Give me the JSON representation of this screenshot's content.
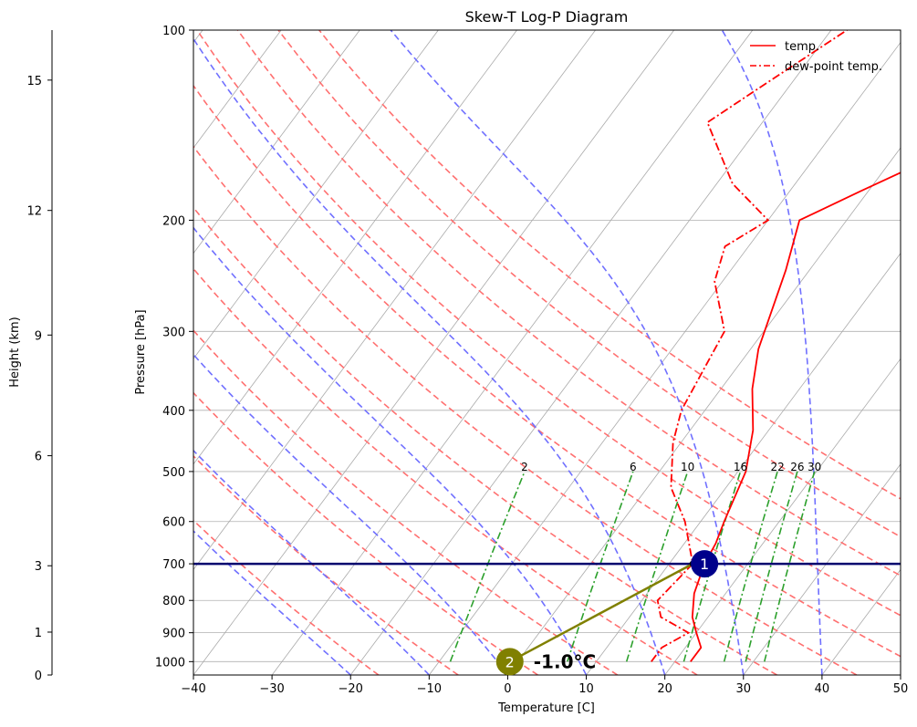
{
  "chart_data": {
    "type": "skew-t",
    "title": "Skew-T Log-P Diagram",
    "xlabel": "Temperature [C]",
    "ylabel": "Pressure [hPa]",
    "height_axis_label": "Height (km)",
    "xlim": [
      -40,
      50
    ],
    "plim": [
      1050,
      100
    ],
    "x_ticks": [
      -40,
      -30,
      -20,
      -10,
      0,
      10,
      20,
      30,
      40,
      50
    ],
    "p_ticks": [
      100,
      200,
      300,
      400,
      500,
      600,
      700,
      800,
      900,
      1000
    ],
    "height_ticks": [
      {
        "label": "15",
        "p": 120
      },
      {
        "label": "12",
        "p": 193
      },
      {
        "label": "9",
        "p": 304
      },
      {
        "label": "6",
        "p": 472
      },
      {
        "label": "3",
        "p": 705
      },
      {
        "label": "1",
        "p": 898
      },
      {
        "label": "0",
        "p": 1050
      }
    ],
    "grid": true,
    "legend_position": "top-right",
    "series": [
      {
        "name": "temp.",
        "style": "solid",
        "color": "#ff0000",
        "points": [
          [
            22,
            1000
          ],
          [
            22,
            950
          ],
          [
            20,
            900
          ],
          [
            18,
            850
          ],
          [
            16,
            780
          ],
          [
            14.5,
            700
          ],
          [
            14,
            650
          ],
          [
            13,
            600
          ],
          [
            11,
            500
          ],
          [
            8,
            430
          ],
          [
            4,
            370
          ],
          [
            1,
            320
          ],
          [
            -3,
            240
          ],
          [
            -6,
            200
          ],
          [
            -1,
            180
          ],
          [
            8,
            150
          ],
          [
            17,
            125
          ],
          [
            32,
            100
          ]
        ]
      },
      {
        "name": "dew-point temp.",
        "style": "dashdot",
        "color": "#ff0000",
        "points": [
          [
            17,
            1000
          ],
          [
            17,
            950
          ],
          [
            19,
            900
          ],
          [
            14,
            850
          ],
          [
            12,
            800
          ],
          [
            13,
            700
          ],
          [
            8,
            600
          ],
          [
            3,
            530
          ],
          [
            -1,
            450
          ],
          [
            -3,
            400
          ],
          [
            -5,
            300
          ],
          [
            -11,
            250
          ],
          [
            -13,
            220
          ],
          [
            -10,
            200
          ],
          [
            -18,
            175
          ],
          [
            -27,
            140
          ],
          [
            -24,
            125
          ],
          [
            -18,
            100
          ]
        ]
      }
    ],
    "dry_adiabats_theta_c": [
      -20,
      -10,
      0,
      10,
      20,
      30,
      40,
      50,
      60,
      70,
      80,
      90
    ],
    "moist_adiabats_c": [
      -20,
      -10,
      0,
      10,
      20,
      30,
      40
    ],
    "mixing_ratios": [
      "2",
      "6",
      "10",
      "16",
      "22",
      "26",
      "30"
    ],
    "mixing_ratio_values": [
      2,
      6,
      10,
      16,
      22,
      26,
      30
    ],
    "highlight_pressure_hpa": 700,
    "markers": [
      {
        "label": "1",
        "T": 14.5,
        "p": 700,
        "color": "#00008b"
      },
      {
        "label": "2",
        "T": -1,
        "p": 1000,
        "color": "#808000"
      }
    ],
    "annotation": "-1.0°C",
    "colors": {
      "temp": "#ff0000",
      "dry_adiabat": "#ff7070",
      "moist_adiabat": "#7070ff",
      "mixing_ratio": "#2ca02c",
      "isotherm": "#aaaaaa",
      "highlight": "#00006e",
      "marker1": "#00008b",
      "marker2": "#808000"
    }
  }
}
